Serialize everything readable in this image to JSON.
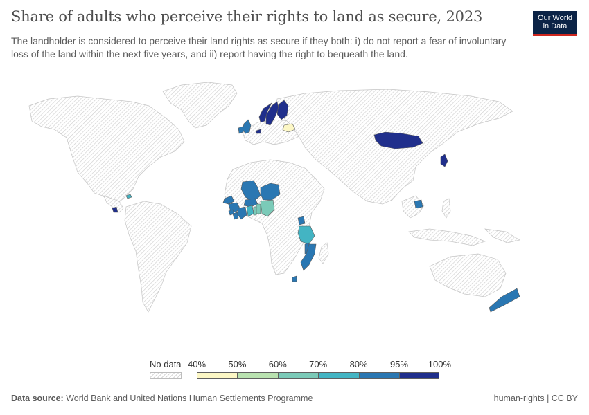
{
  "header": {
    "title": "Share of adults who perceive their rights to land as secure, 2023",
    "subtitle": "The landholder is considered to perceive their land rights as secure if they both: i) do not report a fear of involuntary loss of the land within the next five years, and ii) report having the right to bequeath the land."
  },
  "logo": {
    "line1": "Our World",
    "line2": "in Data"
  },
  "legend": {
    "no_data_label": "No data",
    "ticks": [
      "40%",
      "50%",
      "60%",
      "70%",
      "80%",
      "95%",
      "100%"
    ],
    "colors": [
      "#fcf7c5",
      "#b9e2b0",
      "#7bcab8",
      "#43b4c3",
      "#2a77b2",
      "#202f8c"
    ],
    "no_data_color": "#e6e6e6"
  },
  "map": {
    "countries_with_data": [
      {
        "name": "Sweden",
        "bin": 5
      },
      {
        "name": "Finland",
        "bin": 5
      },
      {
        "name": "Norway",
        "bin": 5
      },
      {
        "name": "United Kingdom",
        "bin": 4
      },
      {
        "name": "Ireland",
        "bin": 4
      },
      {
        "name": "Netherlands",
        "bin": 5
      },
      {
        "name": "Belarus",
        "bin": 0
      },
      {
        "name": "Mongolia",
        "bin": 5
      },
      {
        "name": "Japan",
        "bin": 5
      },
      {
        "name": "Cambodia",
        "bin": 4
      },
      {
        "name": "Mali",
        "bin": 4
      },
      {
        "name": "Niger",
        "bin": 4
      },
      {
        "name": "Senegal",
        "bin": 4
      },
      {
        "name": "Guinea",
        "bin": 4
      },
      {
        "name": "Sierra Leone",
        "bin": 4
      },
      {
        "name": "Liberia",
        "bin": 4
      },
      {
        "name": "Cote d'Ivoire",
        "bin": 4
      },
      {
        "name": "Burkina Faso",
        "bin": 4
      },
      {
        "name": "Ghana",
        "bin": 3
      },
      {
        "name": "Togo",
        "bin": 2
      },
      {
        "name": "Benin",
        "bin": 2
      },
      {
        "name": "Nigeria",
        "bin": 2
      },
      {
        "name": "Uganda",
        "bin": 4
      },
      {
        "name": "Tanzania",
        "bin": 3
      },
      {
        "name": "Malawi",
        "bin": 4
      },
      {
        "name": "Mozambique",
        "bin": 4
      },
      {
        "name": "Eswatini",
        "bin": 4
      },
      {
        "name": "Panama",
        "bin": 5
      },
      {
        "name": "Jamaica",
        "bin": 3
      },
      {
        "name": "New Zealand",
        "bin": 4
      }
    ]
  },
  "footer": {
    "source_label": "Data source:",
    "source_text": "World Bank and United Nations Human Settlements Programme",
    "right_text": "human-rights | CC BY"
  }
}
